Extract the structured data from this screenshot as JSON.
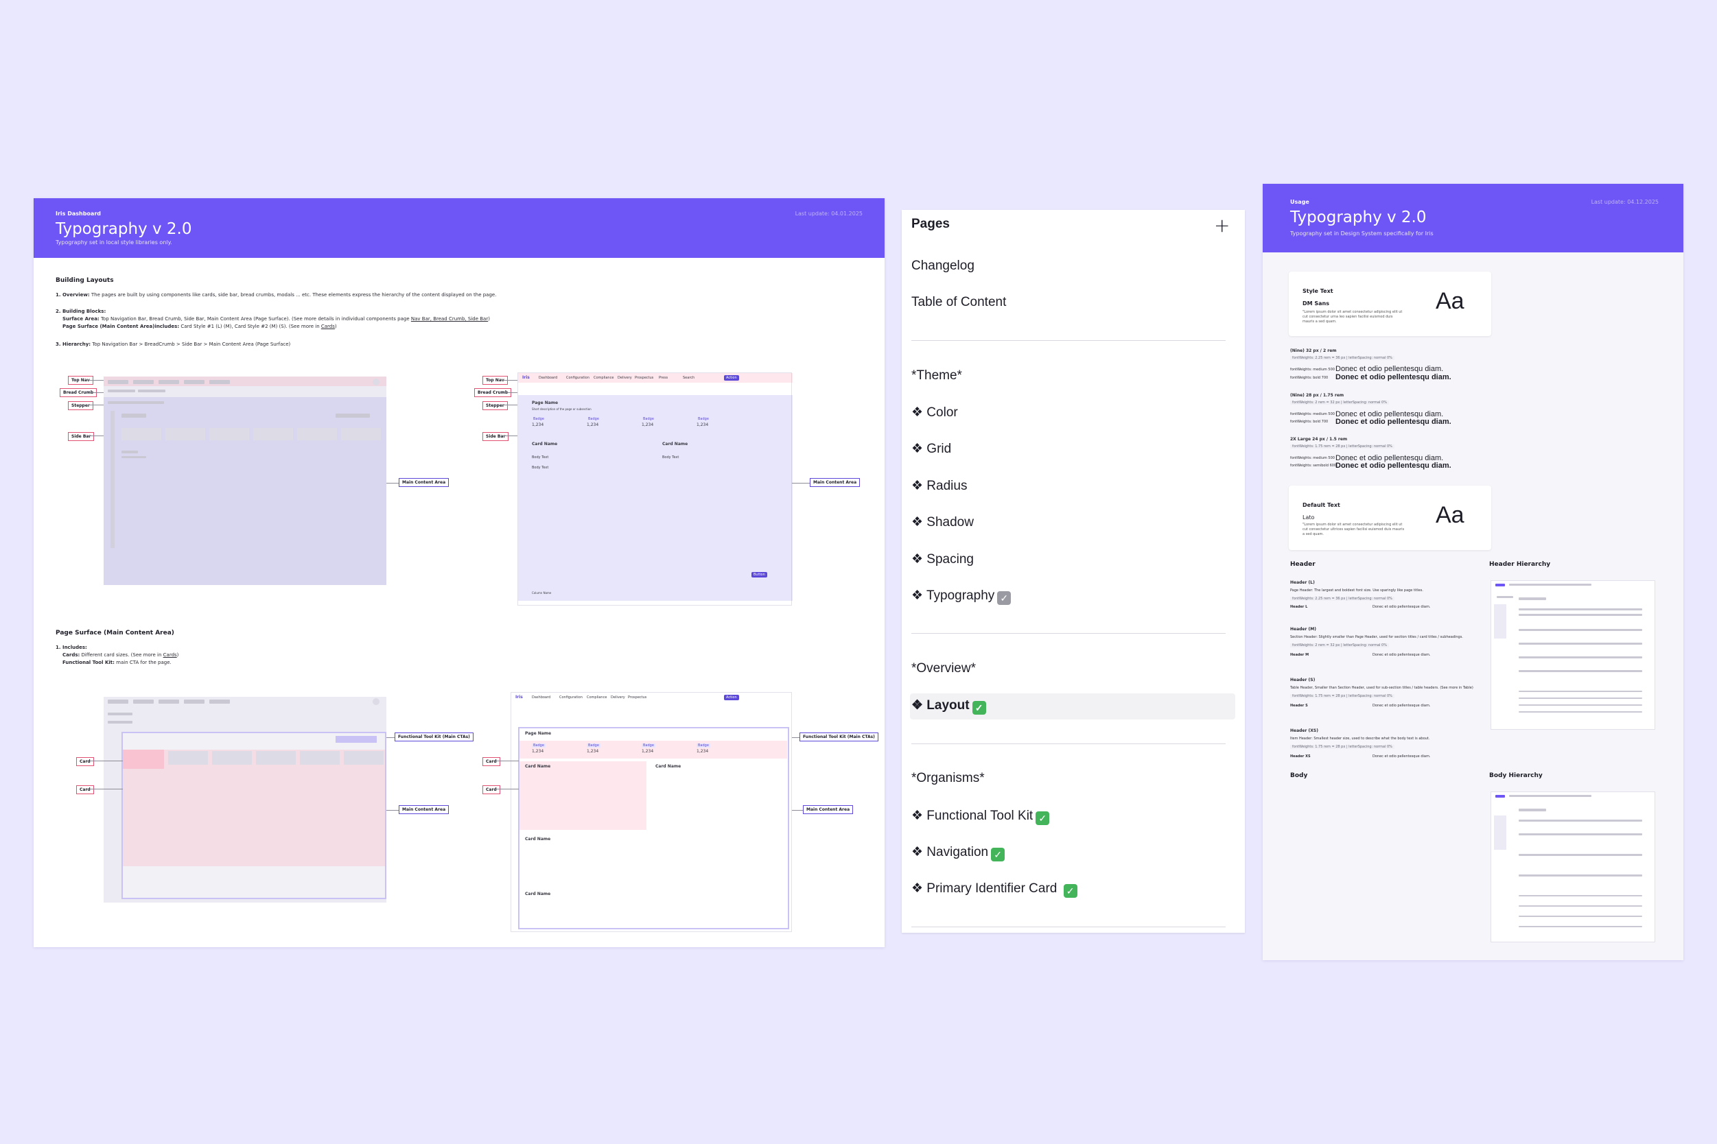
{
  "left_doc": {
    "header": {
      "supertitle": "Iris Dashboard",
      "title": "Typography v 2.0",
      "subtitle": "Typography set in local style libraries only.",
      "date": "Last update: 04.01.2025"
    },
    "building_layouts": {
      "title": "Building Layouts",
      "item1_label": "1. Overview:",
      "item1_text": " The pages are built by using components like cards, side bar, bread crumbs, modals ... etc. These elements express the hierarchy of the content displayed on the page.",
      "item2_label": "2. Building Blocks:",
      "surface_label": "Surface Area:",
      "surface_text": " Top Navigation Bar, Bread Crumb, Side Bar, Main Content Area (Page Surface). (See more details in individual components page ",
      "surface_links": "Nav Bar, Bread Crumb, Side Bar",
      "page_surface_label": "Page Surface (Main Content Area)includes:",
      "page_surface_text": " Card Style #1 (L) (M), Card Style #2 (M) (S). (See more in ",
      "page_surface_link": "Cards",
      "item3_label": "3. Hierarchy:",
      "item3_text": " Top Navigation Bar > BreadCrumb > Side Bar > Main Content Area (Page Surface)"
    },
    "annotations": {
      "top_nav": "Top Nav",
      "bread_crumb": "Bread Crumb",
      "stepper": "Stepper",
      "side_bar": "Side Bar",
      "main_content_area": "Main Content Area",
      "card": "Card",
      "functional_tool_kit": "Functional Tool Kit (Main CTAs)"
    },
    "page_surface": {
      "title": "Page Surface (Main Content Area)",
      "item1_label": "1. Includes:",
      "cards_label": "Cards:",
      "cards_text": " Different card sizes. (See more in ",
      "cards_link": "Cards",
      "ftk_label": "Functional Tool Kit:",
      "ftk_text": " main CTA for the page."
    },
    "mock_ui": {
      "logo": "Iris",
      "nav": [
        "Dashboard",
        "Configuration",
        "Compliance",
        "Delivery",
        "Prospectus",
        "Press"
      ],
      "search_placeholder": "Search",
      "action_button": "Action",
      "page_name": "Page Name",
      "page_desc": "Short description of the page or subsection",
      "card_name": "Card Name",
      "badge": "Badge",
      "metric": "1,234",
      "body_text": "Body Text",
      "column_name": "Column Name",
      "button": "Button"
    }
  },
  "pages_panel": {
    "title": "Pages",
    "add_icon": "plus-icon",
    "items_top": [
      "Changelog",
      "Table of Content"
    ],
    "theme_header": "*Theme*",
    "theme_items": [
      "❖ Color",
      "❖ Grid",
      "❖ Radius",
      "❖ Shadow",
      "❖ Spacing",
      "❖ Typography"
    ],
    "overview_header": "*Overview*",
    "overview_items": [
      "❖ Layout"
    ],
    "organisms_header": "*Organisms*",
    "organisms_items": [
      "❖ Functional Tool Kit",
      "❖ Navigation",
      "❖ Primary Identifier Card"
    ],
    "check_green": "✓",
    "check_grey": "✓",
    "selected_item": "❖ Layout"
  },
  "right_doc": {
    "header": {
      "supertitle": "Usage",
      "title": "Typography v 2.0",
      "subtitle": "Typography set in Design System specifically for Iris",
      "date": "Last update: 04.12.2025"
    },
    "style_text": {
      "label": "Style Text",
      "font": "DM Sans",
      "desc": "\"Lorem ipsum dolor sit amet consectetur adipiscing elit ut cut consectetur urna leo sapien facilisi euismod duis mauris a sed quam.",
      "aa": "Aa"
    },
    "default_text": {
      "label": "Default Text",
      "font": "Lato",
      "desc": "\"Lorem ipsum dolor sit amet consectetur adipiscing elit ut cut consectetur ultrices sapien facilisi euismod duis mauris a sed quam.",
      "aa": "Aa"
    },
    "sizes": [
      {
        "name": "(Nine) 32 px / 2 rem",
        "meta": "fontWeights: 2.25 rem = 36 px | letterSpacing: normal 0%",
        "regular_label": "fontWeights: medium 500",
        "bold_label": "fontWeights: bold 700",
        "sample": "Donec et odio pellentesqu diam."
      },
      {
        "name": "(Nine) 28 px / 1.75 rem",
        "meta": "fontWeights: 2 rem = 32 px | letterSpacing: normal 0%",
        "regular_label": "fontWeights: medium 500",
        "bold_label": "fontWeights: bold 700",
        "sample": "Donec et odio pellentesqu diam."
      },
      {
        "name": "2X Large 24 px / 1.5 rem",
        "meta": "fontWeights: 1.75 rem = 28 px | letterSpacing: normal 0%",
        "regular_label": "fontWeights: medium 500",
        "bold_label": "fontWeights: semibold 600",
        "sample": "Donec et odio pellentesqu diam."
      }
    ],
    "header_section": "Header",
    "header_hierarchy": "Header Hierarchy",
    "body_section": "Body",
    "body_hierarchy": "Body Hierarchy",
    "header_levels": [
      {
        "name": "Header (L)",
        "desc": "Page Header: The largest and boldest font size. Use sparingly like page titles.",
        "row": "Header L",
        "sample": "Donec et odio pellentesque diam."
      },
      {
        "name": "Header (M)",
        "desc": "Section Header: Slightly smaller than Page Header, used for section titles / card titles / subheadings.",
        "row": "Header M",
        "sample": "Donec et odio pellentesque diam."
      },
      {
        "name": "Header (S)",
        "desc": "Table Header, Smaller than Section Header, used for sub-section titles / table headers. (See more in Table)",
        "row": "Header S",
        "sample": "Donec et odio pellentesque diam."
      },
      {
        "name": "Header (XS)",
        "desc": "Item Header: Smallest header size, used to describe what the body text is about.",
        "row": "Header XS",
        "sample": "Donec et odio pellentesque diam."
      }
    ]
  }
}
